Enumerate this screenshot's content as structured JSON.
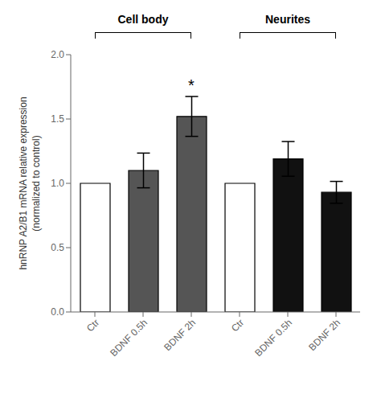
{
  "chart_data": {
    "type": "bar",
    "categories": [
      "Ctr",
      "BDNF 0.5h",
      "BDNF 2h",
      "Ctr",
      "BDNF 0.5h",
      "BDNF 2h"
    ],
    "values": [
      1.0,
      1.1,
      1.52,
      1.0,
      1.19,
      0.93
    ],
    "errors": [
      0.0,
      0.135,
      0.155,
      0.0,
      0.135,
      0.085
    ],
    "colors": [
      "white",
      "#555555",
      "#555555",
      "white",
      "#111111",
      "#111111"
    ],
    "ylabel": "hnRNP A2/B1 mRNA relative expression\n(normalized to control)",
    "ylim": [
      0.0,
      2.0
    ],
    "yticks": [
      {
        "value": 0.0,
        "label": "0.0"
      },
      {
        "value": 0.5,
        "label": "0.5"
      },
      {
        "value": 1.0,
        "label": "1.0"
      },
      {
        "value": 1.5,
        "label": "1.5"
      },
      {
        "value": 2.0,
        "label": "2.0"
      }
    ],
    "grid": false,
    "group_labels": [
      "Cell body",
      "Neurites"
    ],
    "annotations": [
      {
        "text": "*",
        "index": 2
      }
    ]
  }
}
